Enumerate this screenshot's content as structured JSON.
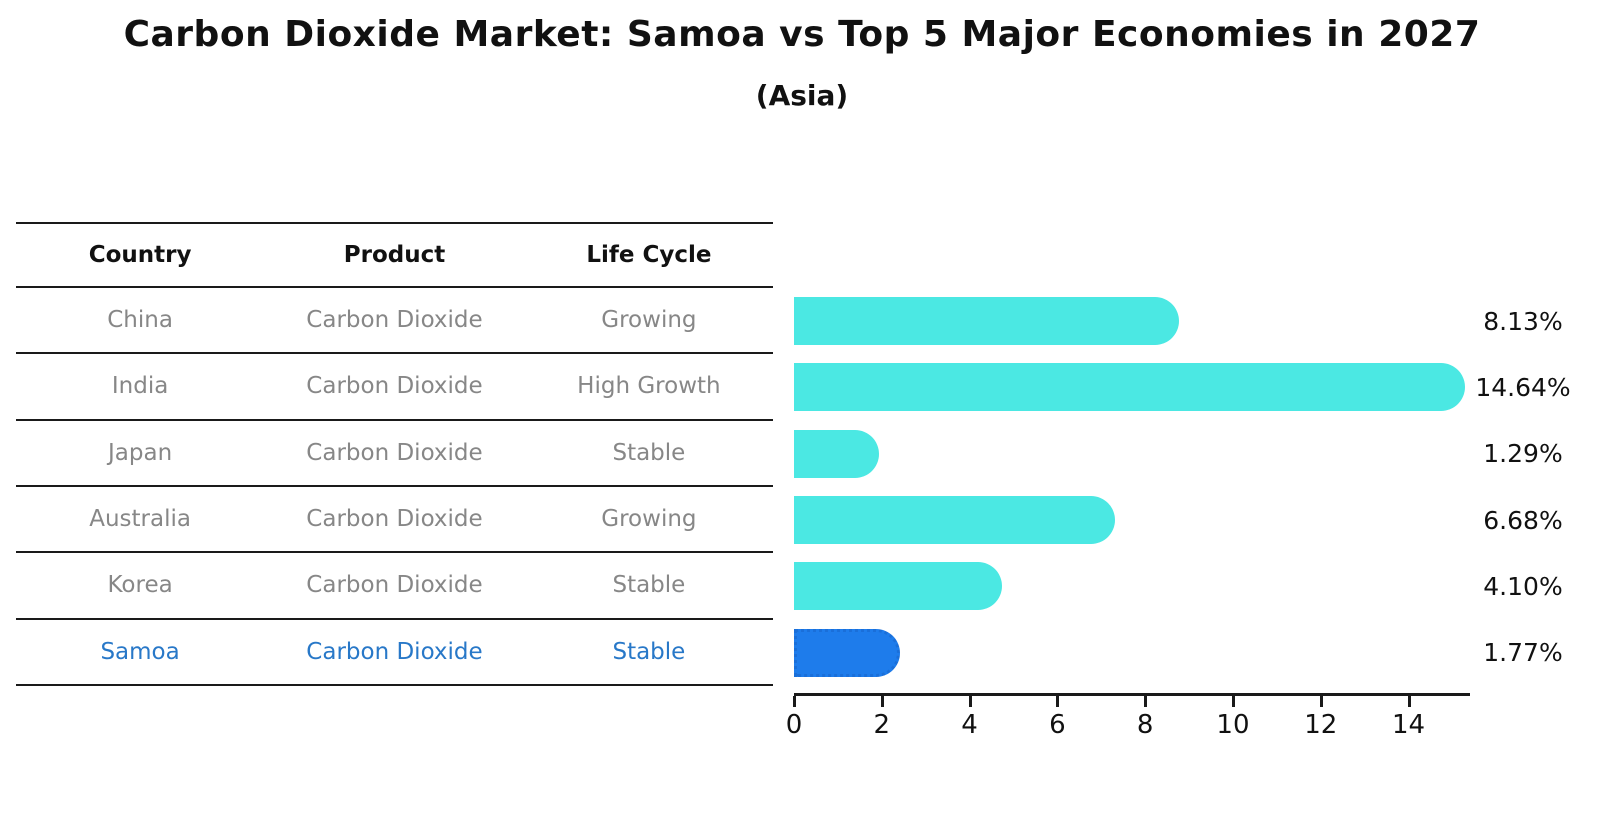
{
  "title": "Carbon Dioxide Market: Samoa vs Top 5 Major Economies in 2027",
  "subtitle": "(Asia)",
  "table": {
    "headers": [
      "Country",
      "Product",
      "Life Cycle"
    ],
    "rows": [
      {
        "country": "China",
        "product": "Carbon Dioxide",
        "life_cycle": "Growing",
        "highlighted": false
      },
      {
        "country": "India",
        "product": "Carbon Dioxide",
        "life_cycle": "High Growth",
        "highlighted": false
      },
      {
        "country": "Japan",
        "product": "Carbon Dioxide",
        "life_cycle": "Stable",
        "highlighted": false
      },
      {
        "country": "Australia",
        "product": "Carbon Dioxide",
        "life_cycle": "Growing",
        "highlighted": false
      },
      {
        "country": "Korea",
        "product": "Carbon Dioxide",
        "life_cycle": "Stable",
        "highlighted": false
      },
      {
        "country": "Samoa",
        "product": "Carbon Dioxide",
        "life_cycle": "Stable",
        "highlighted": true
      }
    ]
  },
  "chart_data": {
    "type": "bar",
    "orientation": "horizontal",
    "title": "Carbon Dioxide Market: Samoa vs Top 5 Major Economies in 2027",
    "subtitle": "(Asia)",
    "categories": [
      "China",
      "India",
      "Japan",
      "Australia",
      "Korea",
      "Samoa"
    ],
    "values": [
      8.13,
      14.64,
      1.29,
      6.68,
      4.1,
      1.77
    ],
    "value_labels": [
      "8.13%",
      "14.64%",
      "1.29%",
      "6.68%",
      "4.10%",
      "1.77%"
    ],
    "highlight_index": 5,
    "x_ticks": [
      0,
      2,
      4,
      6,
      8,
      10,
      12,
      14
    ],
    "xlim": [
      0,
      15.4
    ],
    "grid": false,
    "legend": false,
    "bar_color": "#4be8e3",
    "highlight_color": "#1e7ceb",
    "highlight_text_color": "#2878c8"
  }
}
